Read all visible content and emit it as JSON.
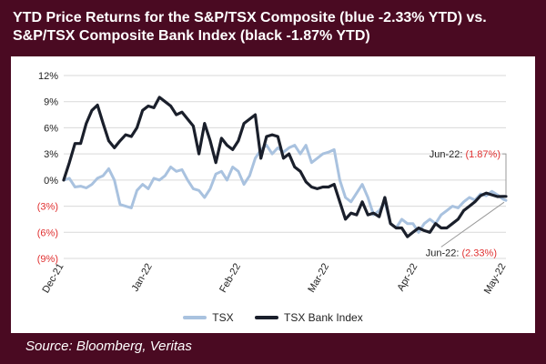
{
  "title": "YTD Price Returns for the S&P/TSX Composite (blue -2.33% YTD) vs. S&P/TSX Composite Bank Index (black -1.87% YTD)",
  "source": "Source: Bloomberg, Veritas",
  "chart_data": {
    "type": "line",
    "title": "YTD Price Returns for the S&P/TSX Composite (blue -2.33% YTD) vs. S&P/TSX Composite Bank Index (black -1.87% YTD)",
    "xlabel": "",
    "ylabel": "",
    "ylim": [
      -9,
      12
    ],
    "y_ticks": [
      12,
      9,
      6,
      3,
      0,
      -3,
      -6,
      -9
    ],
    "y_tick_labels": [
      "12%",
      "9%",
      "6%",
      "3%",
      "0%",
      "(3%)",
      "(6%)",
      "(9%)"
    ],
    "x_tick_labels": [
      "Dec-21",
      "Jan-22",
      "Feb-22",
      "Mar-22",
      "Apr-22",
      "May-22"
    ],
    "grid": true,
    "legend_position": "bottom",
    "colors": {
      "TSX": "#a9c2df",
      "TSX Bank Index": "#1a1f2b",
      "negative_label": "#e03030"
    },
    "annotations": [
      {
        "prefix": "Jun-22:",
        "value": "(1.87%)",
        "series": "TSX Bank Index"
      },
      {
        "prefix": "Jun-22:",
        "value": "(2.33%)",
        "series": "TSX"
      }
    ],
    "series": [
      {
        "name": "TSX",
        "x": [
          0,
          2,
          4,
          6,
          8,
          10,
          12,
          14,
          16,
          18,
          20,
          22,
          24,
          26,
          28,
          30,
          32,
          34,
          36,
          38,
          40,
          42,
          44,
          46,
          48,
          50,
          52,
          54,
          56,
          58,
          60,
          62,
          64,
          66,
          68,
          70,
          72,
          74,
          76,
          78,
          80,
          82,
          84,
          86,
          88,
          90,
          92,
          94,
          96,
          98,
          100,
          102,
          104,
          106,
          108,
          110,
          112,
          114,
          116,
          118,
          120,
          122,
          124,
          126,
          128,
          130,
          132,
          134,
          136,
          138,
          140,
          142,
          144,
          146,
          148,
          150,
          152,
          154,
          156,
          157
        ],
        "values": [
          0,
          0.2,
          -0.8,
          -0.7,
          -0.9,
          -0.5,
          0.2,
          0.5,
          1.3,
          0,
          -2.8,
          -3,
          -3.2,
          -1.2,
          -0.5,
          -1,
          0.2,
          0,
          0.5,
          1.5,
          1,
          1.2,
          0,
          -1,
          -1.2,
          -2,
          -1,
          0.7,
          1,
          0,
          1.5,
          1,
          -0.5,
          0.5,
          2.5,
          3.5,
          4,
          3,
          3.7,
          3.2,
          3.7,
          4,
          3,
          4,
          2,
          2.5,
          3,
          3.2,
          3.5,
          0,
          -2,
          -2.5,
          -1.5,
          -0.5,
          -2,
          -4,
          -3.5,
          -2.5,
          -5,
          -5.5,
          -4.5,
          -5,
          -5,
          -6,
          -5,
          -4.5,
          -5,
          -4,
          -3.5,
          -3,
          -3.2,
          -2.5,
          -2,
          -2.3,
          -1.6,
          -1.8,
          -1.3,
          -1.7,
          -2.2,
          -2.33
        ]
      },
      {
        "name": "TSX Bank Index",
        "x": [
          0,
          2,
          4,
          6,
          8,
          10,
          12,
          14,
          16,
          18,
          20,
          22,
          24,
          26,
          28,
          30,
          32,
          34,
          36,
          38,
          40,
          42,
          44,
          46,
          48,
          50,
          52,
          54,
          56,
          58,
          60,
          62,
          64,
          66,
          68,
          70,
          72,
          74,
          76,
          78,
          80,
          82,
          84,
          86,
          88,
          90,
          92,
          94,
          96,
          98,
          100,
          102,
          104,
          106,
          108,
          110,
          112,
          114,
          116,
          118,
          120,
          122,
          124,
          126,
          128,
          130,
          132,
          134,
          136,
          138,
          140,
          142,
          144,
          146,
          148,
          150,
          152,
          154,
          156,
          157
        ],
        "values": [
          0,
          2,
          4.2,
          4.2,
          6.5,
          8,
          8.6,
          6.5,
          4.5,
          3.7,
          4.5,
          5.2,
          5,
          6,
          8,
          8.5,
          8.3,
          9.5,
          9,
          8.5,
          7.5,
          7.8,
          7,
          6.2,
          3,
          6.5,
          4.5,
          2,
          4.8,
          4,
          3.5,
          4.5,
          6.5,
          7,
          7.5,
          2.5,
          5,
          5.2,
          5,
          2.5,
          3,
          1.5,
          1,
          -0.2,
          -0.8,
          -1,
          -0.8,
          -0.8,
          -0.5,
          -2.5,
          -4.5,
          -3.8,
          -4,
          -2.5,
          -4,
          -3.8,
          -4.2,
          -2,
          -5,
          -5.5,
          -5.5,
          -6.5,
          -6,
          -5.5,
          -5.8,
          -6,
          -5,
          -5.5,
          -5.5,
          -5,
          -4.5,
          -3.5,
          -3,
          -2.5,
          -1.8,
          -1.5,
          -1.7,
          -1.9,
          -1.87,
          -1.87
        ]
      }
    ]
  }
}
